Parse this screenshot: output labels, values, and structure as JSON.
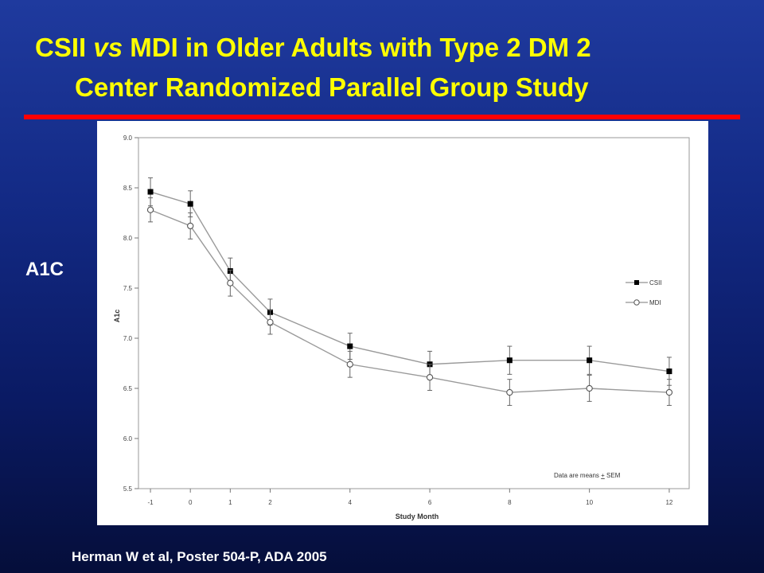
{
  "slide": {
    "title_line1_pre": "CSII ",
    "title_line1_em": "vs",
    "title_line1_post": " MDI in Older Adults with Type 2 DM 2",
    "title_line2": "Center Randomized Parallel Group Study",
    "side_label": "A1C",
    "citation": "Herman W et al, Poster 504-P, ADA 2005",
    "colors": {
      "title": "#ffff00",
      "rule": "#ff0000",
      "background_top": "#1f3a9e",
      "background_bottom": "#050e3a"
    }
  },
  "chart_data": {
    "type": "line",
    "xlabel": "Study Month",
    "ylabel": "A1c",
    "x": [
      -1,
      0,
      1,
      2,
      4,
      6,
      8,
      10,
      12
    ],
    "x_tick_labels": [
      "-1",
      "0",
      "1",
      "2",
      "4",
      "6",
      "8",
      "10",
      "12"
    ],
    "ylim": [
      5.5,
      9.0
    ],
    "y_ticks": [
      "5.5",
      "6.0",
      "6.5",
      "7.0",
      "7.5",
      "8.0",
      "8.5",
      "9.0"
    ],
    "series": [
      {
        "name": "CSII",
        "marker": "filled-square",
        "values": [
          8.46,
          8.34,
          7.67,
          7.26,
          6.92,
          6.74,
          6.78,
          6.78,
          6.67
        ],
        "sem": [
          0.14,
          0.13,
          0.13,
          0.13,
          0.13,
          0.13,
          0.14,
          0.14,
          0.14
        ]
      },
      {
        "name": "MDI",
        "marker": "open-circle",
        "values": [
          8.28,
          8.12,
          7.55,
          7.16,
          6.74,
          6.61,
          6.46,
          6.5,
          6.46
        ],
        "sem": [
          0.12,
          0.13,
          0.13,
          0.12,
          0.13,
          0.13,
          0.13,
          0.13,
          0.13
        ]
      }
    ],
    "legend_position": "right",
    "annotation_pre": "Data are means ",
    "annotation_pm": "+",
    "annotation_post": " SEM",
    "grid": false
  }
}
